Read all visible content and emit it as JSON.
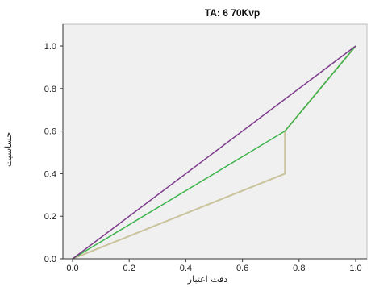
{
  "chart_data": {
    "type": "line",
    "title": "TA: 6  70Kvp",
    "xlabel": "دقت اعتبار",
    "ylabel": "حساسیت",
    "xlim": [
      0.0,
      1.0
    ],
    "ylim": [
      0.0,
      1.0
    ],
    "x_ticks": [
      "0.0",
      "0.2",
      "0.4",
      "0.6",
      "0.8",
      "1.0"
    ],
    "y_ticks": [
      "0.0",
      "0.2",
      "0.4",
      "0.6",
      "0.8",
      "1.0"
    ],
    "grid": false,
    "legend": "none",
    "background_color": "#f0f0f0",
    "series": [
      {
        "color": "#7d3c8c",
        "points": [
          [
            0.0,
            0.0
          ],
          [
            1.0,
            1.0
          ]
        ]
      },
      {
        "color": "#3cb44b",
        "points": [
          [
            0.0,
            0.0
          ],
          [
            0.75,
            0.6
          ],
          [
            1.0,
            1.0
          ]
        ]
      },
      {
        "color": "#c8c39a",
        "points": [
          [
            0.0,
            0.0
          ],
          [
            0.75,
            0.4
          ],
          [
            0.75,
            0.6
          ],
          [
            1.0,
            1.0
          ]
        ]
      }
    ]
  }
}
